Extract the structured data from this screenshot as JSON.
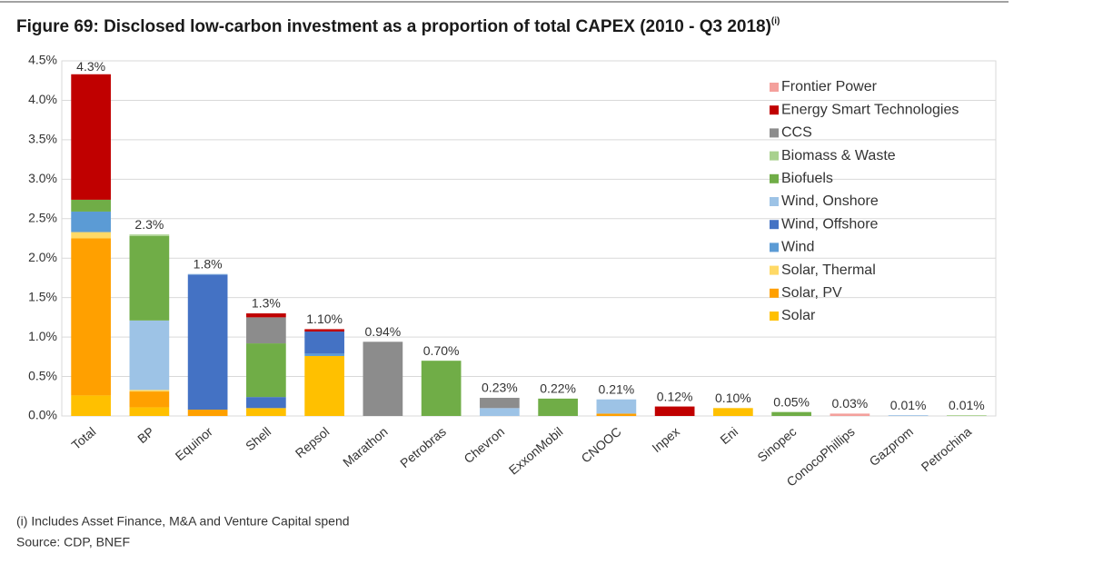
{
  "chart_data": {
    "type": "stacked-bar",
    "title": "Figure 69: Disclosed low-carbon investment as a proportion of total CAPEX (2010 - Q3 2018)",
    "title_note": "(i)",
    "footnotes": [
      "(i) Includes Asset Finance, M&A and Venture Capital spend",
      "Source: CDP, BNEF"
    ],
    "categories": [
      "Total",
      "BP",
      "Equinor",
      "Shell",
      "Repsol",
      "Marathon",
      "Petrobras",
      "Chevron",
      "ExxonMobil",
      "CNOOC",
      "Inpex",
      "Eni",
      "Sinopec",
      "ConocoPhillips",
      "Gazprom",
      "Petrochina"
    ],
    "series": [
      {
        "name": "Solar",
        "color": "#ffc000",
        "values": [
          0.26,
          0.11,
          0,
          0.1,
          0.76,
          0,
          0,
          0,
          0,
          0,
          0,
          0.1,
          0,
          0,
          0,
          0
        ]
      },
      {
        "name": "Solar, PV",
        "color": "#ffa000",
        "values": [
          1.99,
          0.2,
          0.08,
          0,
          0,
          0,
          0,
          0,
          0,
          0.03,
          0,
          0,
          0,
          0,
          0,
          0
        ]
      },
      {
        "name": "Solar, Thermal",
        "color": "#ffd966",
        "values": [
          0.08,
          0.02,
          0,
          0,
          0,
          0,
          0,
          0,
          0,
          0,
          0,
          0,
          0,
          0,
          0,
          0
        ]
      },
      {
        "name": "Wind",
        "color": "#5b9bd5",
        "values": [
          0.26,
          0,
          0,
          0,
          0.03,
          0,
          0,
          0,
          0,
          0,
          0,
          0,
          0,
          0,
          0,
          0
        ]
      },
      {
        "name": "Wind, Offshore",
        "color": "#4472c4",
        "values": [
          0,
          0,
          1.71,
          0.14,
          0.28,
          0,
          0,
          0,
          0,
          0,
          0,
          0,
          0,
          0,
          0,
          0
        ]
      },
      {
        "name": "Wind, Onshore",
        "color": "#9dc3e6",
        "values": [
          0,
          0.88,
          0.01,
          0,
          0,
          0,
          0,
          0.1,
          0,
          0.18,
          0,
          0,
          0,
          0,
          0.01,
          0
        ]
      },
      {
        "name": "Biofuels",
        "color": "#70ad47",
        "values": [
          0.15,
          1.07,
          0,
          0.68,
          0,
          0,
          0.7,
          0,
          0.22,
          0,
          0,
          0,
          0.05,
          0,
          0,
          0
        ]
      },
      {
        "name": "Biomass & Waste",
        "color": "#a9d18e",
        "values": [
          0,
          0.02,
          0,
          0,
          0,
          0,
          0,
          0,
          0,
          0,
          0,
          0,
          0,
          0,
          0,
          0.01
        ]
      },
      {
        "name": "CCS",
        "color": "#8c8c8c",
        "values": [
          0,
          0,
          0,
          0.33,
          0,
          0.94,
          0,
          0.13,
          0,
          0,
          0,
          0,
          0,
          0,
          0,
          0
        ]
      },
      {
        "name": "Energy Smart Technologies",
        "color": "#c00000",
        "values": [
          1.59,
          0,
          0,
          0.05,
          0.03,
          0,
          0,
          0,
          0,
          0,
          0.12,
          0,
          0,
          0,
          0,
          0
        ]
      },
      {
        "name": "Frontier Power",
        "color": "#f4a09c",
        "values": [
          0,
          0,
          0,
          0,
          0,
          0,
          0,
          0,
          0,
          0,
          0,
          0,
          0,
          0.03,
          0,
          0
        ]
      }
    ],
    "totals": [
      4.3,
      2.3,
      1.8,
      1.3,
      1.1,
      0.94,
      0.7,
      0.23,
      0.22,
      0.21,
      0.12,
      0.1,
      0.05,
      0.03,
      0.01,
      0.01
    ],
    "total_labels": [
      "4.3%",
      "2.3%",
      "1.8%",
      "1.3%",
      "1.10%",
      "0.94%",
      "0.70%",
      "0.23%",
      "0.22%",
      "0.21%",
      "0.12%",
      "0.10%",
      "0.05%",
      "0.03%",
      "0.01%",
      "0.01%"
    ],
    "ylim": [
      0,
      4.5
    ],
    "yticks": [
      {
        "value": 0,
        "label": "0.0%"
      },
      {
        "value": 0.5,
        "label": "0.5%"
      },
      {
        "value": 1,
        "label": "1.0%"
      },
      {
        "value": 1.5,
        "label": "1.5%"
      },
      {
        "value": 2,
        "label": "2.0%"
      },
      {
        "value": 2.5,
        "label": "2.5%"
      },
      {
        "value": 3,
        "label": "3.0%"
      },
      {
        "value": 3.5,
        "label": "3.5%"
      },
      {
        "value": 4,
        "label": "4.0%"
      },
      {
        "value": 4.5,
        "label": "4.5%"
      }
    ],
    "grid": true
  }
}
